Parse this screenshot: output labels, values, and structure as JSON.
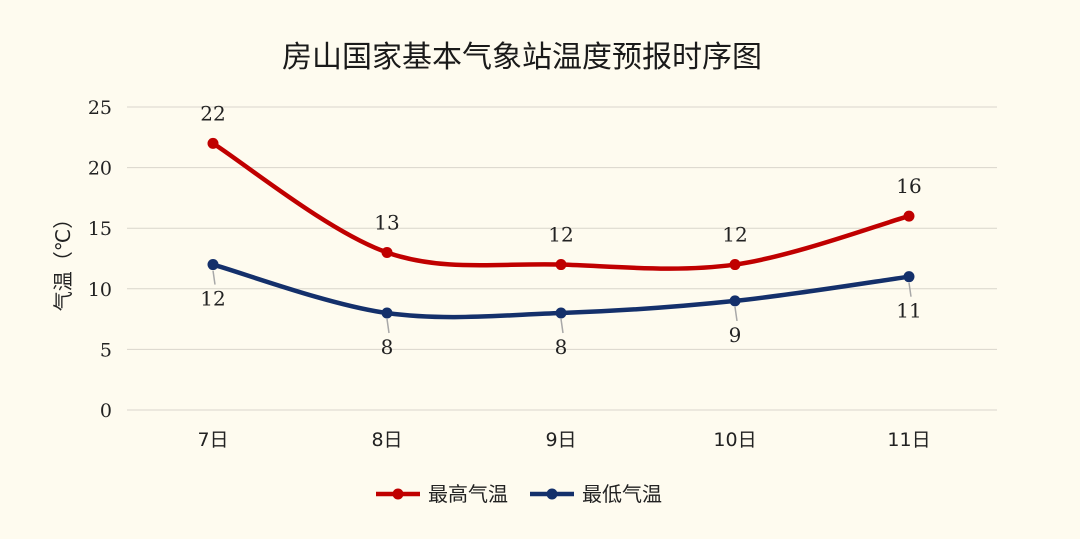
{
  "chart_data": {
    "type": "line",
    "title": "房山国家基本气象站温度预报时序图",
    "xlabel": "",
    "ylabel": "气温（℃）",
    "categories": [
      "7日",
      "8日",
      "9日",
      "10日",
      "11日"
    ],
    "ylim": [
      0,
      25
    ],
    "yticks": [
      0,
      5,
      10,
      15,
      20,
      25
    ],
    "grid": true,
    "legend_position": "bottom",
    "series": [
      {
        "name": "最高气温",
        "values": [
          22,
          13,
          12,
          12,
          16
        ],
        "color": "#c00000",
        "label_side": "above"
      },
      {
        "name": "最低气温",
        "values": [
          12,
          8,
          8,
          9,
          11
        ],
        "color": "#14306b",
        "label_side": "below"
      }
    ]
  }
}
